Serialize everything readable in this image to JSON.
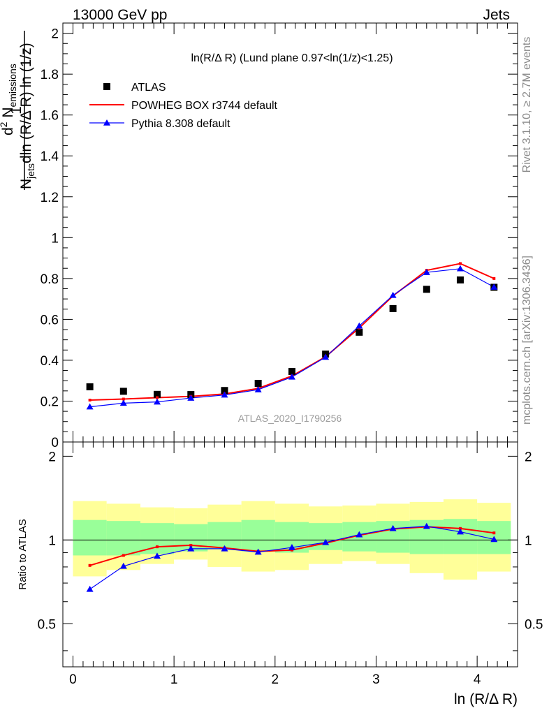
{
  "header": {
    "left": "13000 GeV pp",
    "right": "Jets"
  },
  "side_text": {
    "top": "Rivet 3.1.10, ≥ 2.7M events",
    "bottom": "mcplots.cern.ch [arXiv:1306.3436]"
  },
  "watermark": "ATLAS_2020_I1790256",
  "chart_data": [
    {
      "type": "scatter",
      "panel": "main",
      "title": "ln(R/Δ R) (Lund plane 0.97<ln(1/z)<1.25)",
      "ylabel": "1/N_jets dln (R/Δ R) ln (1/z) d² N_emissions",
      "ylim": [
        0,
        2.05
      ],
      "yticks": [
        0,
        0.2,
        0.4,
        0.6,
        0.8,
        1,
        1.2,
        1.4,
        1.6,
        1.8,
        2
      ],
      "ytick_labels": [
        "0",
        "0.2",
        "0.4",
        "0.6",
        "0.8",
        "1",
        "1.2",
        "1.4",
        "1.6",
        "1.8",
        "2"
      ],
      "legend_position": "top-left",
      "x": [
        0.167,
        0.5,
        0.833,
        1.167,
        1.5,
        1.833,
        2.167,
        2.5,
        2.833,
        3.167,
        3.5,
        3.833,
        4.167
      ],
      "series": [
        {
          "name": "ATLAS",
          "color": "#000000",
          "marker": "square",
          "values": [
            0.27,
            0.248,
            0.233,
            0.232,
            0.252,
            0.287,
            0.345,
            0.43,
            0.537,
            0.653,
            0.747,
            0.793,
            0.757
          ]
        },
        {
          "name": "POWHEG BOX r3744 default",
          "color": "#ff0000",
          "marker": "dot",
          "values": [
            0.205,
            0.21,
            0.217,
            0.223,
            0.235,
            0.262,
            0.323,
            0.417,
            0.558,
            0.715,
            0.84,
            0.873,
            0.8
          ]
        },
        {
          "name": "Pythia 8.308 default",
          "color": "#0000ff",
          "marker": "triangle",
          "values": [
            0.172,
            0.19,
            0.196,
            0.215,
            0.23,
            0.256,
            0.318,
            0.415,
            0.568,
            0.718,
            0.83,
            0.848,
            0.758
          ]
        }
      ]
    },
    {
      "type": "line",
      "panel": "ratio",
      "xlabel": "ln (R/Δ R)",
      "ylabel": "Ratio to ATLAS",
      "xlim": [
        -0.1,
        4.4
      ],
      "xticks": [
        0,
        1,
        2,
        3,
        4
      ],
      "xtick_labels": [
        "0",
        "1",
        "2",
        "3",
        "4"
      ],
      "ylim": [
        0.35,
        2.25
      ],
      "yticks": [
        0.5,
        1,
        2
      ],
      "ytick_labels": [
        "0.5",
        "1",
        "2"
      ],
      "bin_edges": [
        0,
        0.333,
        0.667,
        1,
        1.333,
        1.667,
        2,
        2.333,
        2.667,
        3,
        3.333,
        3.667,
        4,
        4.333
      ],
      "band_green": {
        "low": [
          0.88,
          0.88,
          0.89,
          0.91,
          0.93,
          0.91,
          0.9,
          0.92,
          0.91,
          0.9,
          0.89,
          0.89,
          0.89
        ],
        "high": [
          1.18,
          1.17,
          1.15,
          1.14,
          1.16,
          1.18,
          1.16,
          1.15,
          1.16,
          1.17,
          1.18,
          1.19,
          1.17
        ]
      },
      "band_yellow": {
        "low": [
          0.74,
          0.78,
          0.82,
          0.85,
          0.8,
          0.77,
          0.78,
          0.82,
          0.84,
          0.82,
          0.76,
          0.72,
          0.77
        ],
        "high": [
          1.38,
          1.35,
          1.31,
          1.3,
          1.34,
          1.38,
          1.35,
          1.32,
          1.33,
          1.35,
          1.37,
          1.4,
          1.36
        ]
      },
      "x": [
        0.167,
        0.5,
        0.833,
        1.167,
        1.5,
        1.833,
        2.167,
        2.5,
        2.833,
        3.167,
        3.5,
        3.833,
        4.167
      ],
      "series": [
        {
          "name": "POWHEG BOX r3744 default",
          "color": "#ff0000",
          "marker": "dot",
          "values": [
            0.81,
            0.88,
            0.945,
            0.957,
            0.936,
            0.91,
            0.92,
            0.975,
            1.04,
            1.095,
            1.115,
            1.1,
            1.06
          ]
        },
        {
          "name": "Pythia 8.308 default",
          "color": "#0000ff",
          "marker": "triangle",
          "values": [
            0.665,
            0.805,
            0.875,
            0.93,
            0.93,
            0.905,
            0.94,
            0.98,
            1.045,
            1.1,
            1.12,
            1.07,
            1.005
          ]
        }
      ]
    }
  ]
}
